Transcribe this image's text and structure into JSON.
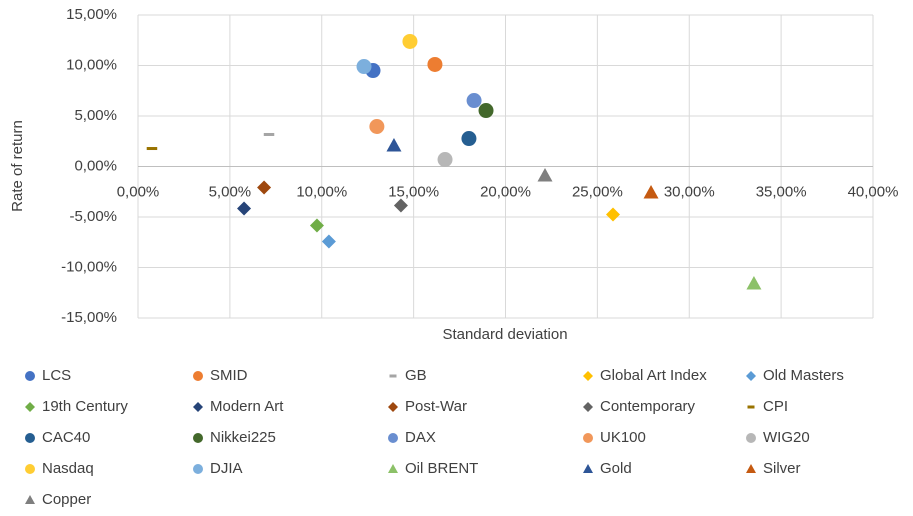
{
  "chart_data": {
    "type": "scatter",
    "x_label": "Standard deviation",
    "y_label": "Rate of return",
    "xlim": [
      0,
      40
    ],
    "ylim": [
      -15,
      15
    ],
    "grid": true,
    "xticks": [
      {
        "value": 0,
        "label": "0,00%"
      },
      {
        "value": 5,
        "label": "5,00%"
      },
      {
        "value": 10,
        "label": "10,00%"
      },
      {
        "value": 15,
        "label": "15,00%"
      },
      {
        "value": 20,
        "label": "20,00%"
      },
      {
        "value": 25,
        "label": "25,00%"
      },
      {
        "value": 30,
        "label": "30,00%"
      },
      {
        "value": 35,
        "label": "35,00%"
      },
      {
        "value": 40,
        "label": "40,00%"
      }
    ],
    "yticks": [
      {
        "value": 15,
        "label": "15,00%"
      },
      {
        "value": 10,
        "label": "10,00%"
      },
      {
        "value": 5,
        "label": "5,00%"
      },
      {
        "value": 0,
        "label": "0,00%"
      },
      {
        "value": -5,
        "label": "-5,00%"
      },
      {
        "value": -10,
        "label": "-10,00%"
      },
      {
        "value": -15,
        "label": "-15,00%"
      }
    ],
    "series": [
      {
        "name": "LCS",
        "color": "#4472c4",
        "marker": "circle",
        "x": [
          12.79
        ],
        "values": [
          9.5
        ]
      },
      {
        "name": "SMID",
        "color": "#ed7d31",
        "marker": "circle",
        "x": [
          16.16
        ],
        "values": [
          10.1
        ]
      },
      {
        "name": "GB",
        "color": "#a5a5a5",
        "marker": "dash",
        "x": [
          7.13
        ],
        "values": [
          3.17
        ]
      },
      {
        "name": "Global Art Index",
        "color": "#ffc000",
        "marker": "diamond",
        "x": [
          25.85
        ],
        "values": [
          -4.75
        ]
      },
      {
        "name": "Old Masters",
        "color": "#5b9bd5",
        "marker": "diamond",
        "x": [
          10.39
        ],
        "values": [
          -7.43
        ]
      },
      {
        "name": "19th Century",
        "color": "#70ad47",
        "marker": "diamond",
        "x": [
          9.74
        ],
        "values": [
          -5.84
        ]
      },
      {
        "name": "Modern Art",
        "color": "#264478",
        "marker": "diamond",
        "x": [
          5.77
        ],
        "values": [
          -4.16
        ]
      },
      {
        "name": "Post-War",
        "color": "#9e480e",
        "marker": "diamond",
        "x": [
          6.86
        ],
        "values": [
          -2.08
        ]
      },
      {
        "name": "Contemporary",
        "color": "#636363",
        "marker": "diamond",
        "x": [
          14.31
        ],
        "values": [
          -3.86
        ]
      },
      {
        "name": "CPI",
        "color": "#997300",
        "marker": "dash",
        "x": [
          0.76
        ],
        "values": [
          1.78
        ]
      },
      {
        "name": "CAC40",
        "color": "#255e91",
        "marker": "circle",
        "x": [
          18.01
        ],
        "values": [
          2.77
        ]
      },
      {
        "name": "Nikkei225",
        "color": "#43682b",
        "marker": "circle",
        "x": [
          18.94
        ],
        "values": [
          5.54
        ]
      },
      {
        "name": "DAX",
        "color": "#698ed0",
        "marker": "circle",
        "x": [
          18.29
        ],
        "values": [
          6.53
        ]
      },
      {
        "name": "UK100",
        "color": "#f1975a",
        "marker": "circle",
        "x": [
          13.0
        ],
        "values": [
          3.96
        ]
      },
      {
        "name": "WIG20",
        "color": "#b7b7b7",
        "marker": "circle",
        "x": [
          16.71
        ],
        "values": [
          0.69
        ]
      },
      {
        "name": "Nasdaq",
        "color": "#ffcd33",
        "marker": "circle",
        "x": [
          14.8
        ],
        "values": [
          12.38
        ]
      },
      {
        "name": "DJIA",
        "color": "#7cafdd",
        "marker": "circle",
        "x": [
          12.3
        ],
        "values": [
          9.9
        ]
      },
      {
        "name": "Oil BRENT",
        "color": "#8cc168",
        "marker": "triangle",
        "x": [
          33.52
        ],
        "values": [
          -11.58
        ]
      },
      {
        "name": "Gold",
        "color": "#2e5597",
        "marker": "triangle",
        "x": [
          13.93
        ],
        "values": [
          2.08
        ]
      },
      {
        "name": "Silver",
        "color": "#c55a11",
        "marker": "triangle",
        "x": [
          27.92
        ],
        "values": [
          -2.57
        ]
      },
      {
        "name": "Copper",
        "color": "#7f7f7f",
        "marker": "triangle",
        "x": [
          22.15
        ],
        "values": [
          -0.89
        ]
      }
    ]
  }
}
